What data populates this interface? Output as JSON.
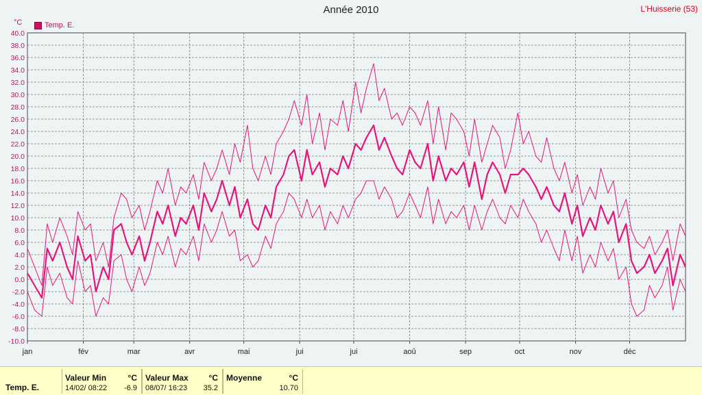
{
  "header": {
    "title": "Année 2010",
    "station": "L'Huisserie (53)",
    "unit": "°C"
  },
  "legend": {
    "label": "Temp. E.",
    "color": "#e8127c"
  },
  "footer": {
    "name": "Temp. E.",
    "min": {
      "label": "Valeur Min",
      "unit": "°C",
      "date": "14/02/  08:22",
      "value": "-6.9"
    },
    "max": {
      "label": "Valeur Max",
      "unit": "°C",
      "date": "08/07/  16:23",
      "value": "35.2"
    },
    "avg": {
      "label": "Moyenne",
      "unit": "°C",
      "value": "10.70"
    }
  },
  "chart_data": {
    "type": "line",
    "title": "Année 2010",
    "ylabel": "°C",
    "ylim": [
      -10,
      40
    ],
    "ytick_step": 2,
    "yticks": [
      "-10.0",
      "-8.0",
      "-6.0",
      "-4.0",
      "-2.0",
      "0.0",
      "2.0",
      "4.0",
      "6.0",
      "8.0",
      "10.0",
      "12.0",
      "14.0",
      "16.0",
      "18.0",
      "20.0",
      "22.0",
      "24.0",
      "26.0",
      "28.0",
      "30.0",
      "32.0",
      "34.0",
      "36.0",
      "38.0",
      "40.0"
    ],
    "xlim": [
      0,
      365
    ],
    "grid": true,
    "months": [
      {
        "label": "jan",
        "day": 0
      },
      {
        "label": "fév",
        "day": 31
      },
      {
        "label": "mar",
        "day": 59
      },
      {
        "label": "avr",
        "day": 90
      },
      {
        "label": "mai",
        "day": 120
      },
      {
        "label": "jui",
        "day": 151
      },
      {
        "label": "jui",
        "day": 181
      },
      {
        "label": "aoû",
        "day": 212
      },
      {
        "label": "sep",
        "day": 243
      },
      {
        "label": "oct",
        "day": 273
      },
      {
        "label": "nov",
        "day": 304
      },
      {
        "label": "déc",
        "day": 334
      }
    ],
    "series": [
      {
        "name": "Temp. E.",
        "role": "max",
        "color": "#e8127c",
        "x": [
          0,
          4,
          8,
          11,
          14,
          18,
          22,
          25,
          28,
          32,
          35,
          38,
          42,
          45,
          48,
          52,
          55,
          58,
          62,
          65,
          68,
          72,
          75,
          78,
          82,
          85,
          88,
          92,
          95,
          98,
          102,
          105,
          108,
          112,
          115,
          118,
          122,
          125,
          128,
          132,
          135,
          138,
          142,
          145,
          148,
          152,
          155,
          158,
          162,
          165,
          168,
          172,
          175,
          178,
          182,
          185,
          188,
          192,
          195,
          198,
          202,
          205,
          208,
          212,
          215,
          218,
          222,
          225,
          228,
          232,
          235,
          238,
          242,
          245,
          248,
          252,
          255,
          258,
          262,
          265,
          268,
          272,
          275,
          278,
          282,
          285,
          288,
          292,
          295,
          298,
          302,
          305,
          308,
          312,
          315,
          318,
          322,
          325,
          328,
          332,
          335,
          338,
          342,
          345,
          348,
          352,
          355,
          358,
          362,
          365
        ],
        "y": [
          5,
          2,
          -1,
          9,
          6,
          10,
          7,
          4,
          11,
          8,
          9,
          3,
          6,
          2,
          10,
          14,
          13,
          10,
          12,
          8,
          11,
          16,
          14,
          18,
          12,
          15,
          14,
          17,
          13,
          19,
          16,
          18,
          21,
          17,
          22,
          19,
          25,
          18,
          16,
          20,
          17,
          22,
          24,
          26,
          29,
          25,
          30,
          22,
          27,
          21,
          26,
          25,
          29,
          24,
          32,
          27,
          31,
          35,
          29,
          31,
          26,
          27,
          25,
          28,
          27,
          25,
          29,
          22,
          28,
          21,
          27,
          26,
          24,
          20,
          26,
          19,
          22,
          25,
          23,
          18,
          21,
          27,
          22,
          24,
          20,
          19,
          23,
          18,
          16,
          19,
          14,
          17,
          12,
          15,
          13,
          18,
          14,
          16,
          10,
          13,
          8,
          6,
          5,
          7,
          4,
          6,
          8,
          3,
          9,
          7
        ]
      },
      {
        "name": "Temp. E.",
        "role": "mean",
        "color": "#e8127c",
        "x": [
          0,
          4,
          8,
          11,
          14,
          18,
          22,
          25,
          28,
          32,
          35,
          38,
          42,
          45,
          48,
          52,
          55,
          58,
          62,
          65,
          68,
          72,
          75,
          78,
          82,
          85,
          88,
          92,
          95,
          98,
          102,
          105,
          108,
          112,
          115,
          118,
          122,
          125,
          128,
          132,
          135,
          138,
          142,
          145,
          148,
          152,
          155,
          158,
          162,
          165,
          168,
          172,
          175,
          178,
          182,
          185,
          188,
          192,
          195,
          198,
          202,
          205,
          208,
          212,
          215,
          218,
          222,
          225,
          228,
          232,
          235,
          238,
          242,
          245,
          248,
          252,
          255,
          258,
          262,
          265,
          268,
          272,
          275,
          278,
          282,
          285,
          288,
          292,
          295,
          298,
          302,
          305,
          308,
          312,
          315,
          318,
          322,
          325,
          328,
          332,
          335,
          338,
          342,
          345,
          348,
          352,
          355,
          358,
          362,
          365
        ],
        "y": [
          1,
          -1,
          -3,
          5,
          3,
          6,
          2,
          0,
          7,
          3,
          4,
          -2,
          2,
          0,
          8,
          9,
          6,
          4,
          7,
          3,
          6,
          11,
          9,
          12,
          7,
          10,
          9,
          12,
          8,
          14,
          11,
          13,
          16,
          12,
          15,
          10,
          13,
          9,
          8,
          12,
          10,
          15,
          17,
          20,
          21,
          16,
          21,
          17,
          19,
          15,
          18,
          17,
          20,
          18,
          22,
          21,
          23,
          25,
          21,
          23,
          20,
          18,
          17,
          21,
          19,
          18,
          22,
          16,
          20,
          16,
          18,
          17,
          19,
          15,
          19,
          13,
          17,
          19,
          17,
          14,
          17,
          17,
          18,
          17,
          15,
          13,
          15,
          12,
          11,
          14,
          9,
          12,
          7,
          10,
          8,
          12,
          9,
          11,
          6,
          9,
          3,
          1,
          2,
          4,
          1,
          3,
          5,
          -1,
          4,
          2
        ]
      },
      {
        "name": "Temp. E.",
        "role": "min",
        "color": "#e8127c",
        "x": [
          0,
          4,
          8,
          11,
          14,
          18,
          22,
          25,
          28,
          32,
          35,
          38,
          42,
          45,
          48,
          52,
          55,
          58,
          62,
          65,
          68,
          72,
          75,
          78,
          82,
          85,
          88,
          92,
          95,
          98,
          102,
          105,
          108,
          112,
          115,
          118,
          122,
          125,
          128,
          132,
          135,
          138,
          142,
          145,
          148,
          152,
          155,
          158,
          162,
          165,
          168,
          172,
          175,
          178,
          182,
          185,
          188,
          192,
          195,
          198,
          202,
          205,
          208,
          212,
          215,
          218,
          222,
          225,
          228,
          232,
          235,
          238,
          242,
          245,
          248,
          252,
          255,
          258,
          262,
          265,
          268,
          272,
          275,
          278,
          282,
          285,
          288,
          292,
          295,
          298,
          302,
          305,
          308,
          312,
          315,
          318,
          322,
          325,
          328,
          332,
          335,
          338,
          342,
          345,
          348,
          352,
          355,
          358,
          362,
          365
        ],
        "y": [
          -2,
          -5,
          -6,
          2,
          -1,
          1,
          -3,
          -4,
          3,
          -2,
          -1,
          -6,
          -3,
          -4,
          3,
          4,
          0,
          -2,
          2,
          -1,
          1,
          6,
          4,
          7,
          2,
          5,
          4,
          7,
          3,
          9,
          6,
          8,
          11,
          7,
          8,
          3,
          4,
          2,
          3,
          7,
          5,
          9,
          11,
          14,
          13,
          10,
          13,
          10,
          12,
          8,
          11,
          9,
          12,
          10,
          13,
          14,
          16,
          16,
          13,
          15,
          13,
          10,
          11,
          14,
          12,
          10,
          15,
          9,
          13,
          9,
          11,
          10,
          12,
          8,
          12,
          8,
          11,
          13,
          10,
          9,
          12,
          10,
          13,
          11,
          9,
          6,
          8,
          5,
          3,
          8,
          3,
          7,
          1,
          4,
          2,
          6,
          3,
          5,
          0,
          2,
          -4,
          -6,
          -5,
          -1,
          -3,
          -1,
          2,
          -5,
          0,
          -2
        ]
      }
    ]
  }
}
